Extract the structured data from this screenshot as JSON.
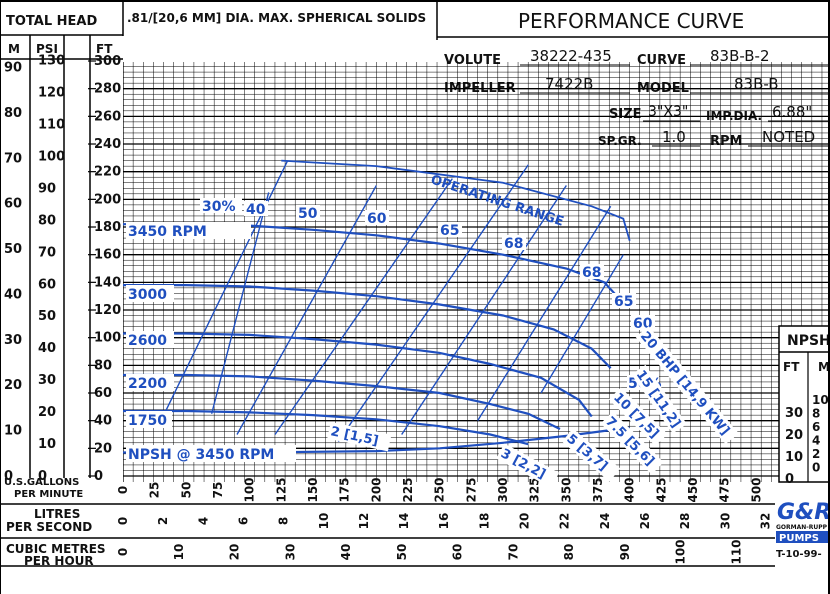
{
  "header": {
    "total_head_label": "TOTAL HEAD",
    "solids_note": ".81/[20,6 MM] DIA. MAX. SPHERICAL SOLIDS",
    "title": "PERFORMANCE CURVE",
    "volute_label": "VOLUTE",
    "volute_value": "38222-435",
    "curve_label": "CURVE",
    "curve_value": "83B-B-2",
    "impeller_label": "IMPELLER",
    "impeller_value": "7422B",
    "model_label": "MODEL",
    "model_value": "83B-B",
    "size_label": "SIZE",
    "size_value": "3\"X3\"",
    "impdia_label": "IMP.DIA.",
    "impdia_value": "6.88\"",
    "spgr_label": "SP.GR.",
    "spgr_value": "1.0",
    "rpm_label": "RPM",
    "rpm_value": "NOTED"
  },
  "left_axes": {
    "m_label": "M",
    "psi_label": "PSI",
    "ft_label": "FT",
    "m_ticks": [
      "90",
      "80",
      "70",
      "60",
      "50",
      "40",
      "30",
      "20",
      "10",
      "0"
    ],
    "psi_ticks": [
      "130",
      "120",
      "110",
      "100",
      "90",
      "80",
      "70",
      "60",
      "50",
      "40",
      "30",
      "20",
      "10",
      "0"
    ],
    "ft_ticks": [
      "300",
      "280",
      "260",
      "240",
      "220",
      "200",
      "180",
      "160",
      "140",
      "120",
      "100",
      "80",
      "60",
      "40",
      "20",
      "0"
    ]
  },
  "bottom_axes": {
    "gpm_label_1": "U.S.GALLONS",
    "gpm_label_2": "PER MINUTE",
    "gpm_ticks": [
      "0",
      "25",
      "50",
      "75",
      "100",
      "125",
      "150",
      "175",
      "200",
      "225",
      "250",
      "275",
      "300",
      "325",
      "350",
      "375",
      "400",
      "425",
      "450",
      "475",
      "500"
    ],
    "lps_label_1": "LITRES",
    "lps_label_2": "PER SECOND",
    "lps_ticks": [
      "0",
      "2",
      "4",
      "6",
      "8",
      "10",
      "12",
      "14",
      "16",
      "18",
      "20",
      "22",
      "24",
      "26",
      "28",
      "30",
      "32"
    ],
    "m3h_label_1": "CUBIC METRES",
    "m3h_label_2": "PER HOUR",
    "m3h_ticks": [
      "0",
      "10",
      "20",
      "30",
      "40",
      "50",
      "60",
      "70",
      "80",
      "90",
      "100",
      "110"
    ]
  },
  "npsh_panel": {
    "title": "NPSH",
    "ft_label": "FT",
    "m_label": "M",
    "ft_ticks": [
      "30",
      "20",
      "10",
      "0"
    ],
    "m_ticks": [
      "10",
      "8",
      "6",
      "4",
      "2",
      "0"
    ]
  },
  "logo": {
    "mark": "G&R",
    "line1": "GORMAN-RUPP",
    "line2": "PUMPS"
  },
  "doc_id": "T-10-99-",
  "chart_data": {
    "type": "line",
    "title": "PERFORMANCE CURVE",
    "xlabel": "U.S.GALLONS PER MINUTE",
    "ylabel": "TOTAL HEAD FT",
    "xlim": [
      0,
      500
    ],
    "ylim": [
      0,
      300
    ],
    "grid": true,
    "series": [
      {
        "name": "3450 RPM",
        "points": [
          [
            0,
            182
          ],
          [
            50,
            182
          ],
          [
            100,
            181
          ],
          [
            150,
            178
          ],
          [
            200,
            174
          ],
          [
            250,
            168
          ],
          [
            300,
            160
          ],
          [
            350,
            150
          ],
          [
            380,
            140
          ],
          [
            395,
            125
          ]
        ]
      },
      {
        "name": "3000",
        "points": [
          [
            0,
            138
          ],
          [
            50,
            138
          ],
          [
            100,
            137
          ],
          [
            150,
            134
          ],
          [
            200,
            130
          ],
          [
            250,
            124
          ],
          [
            300,
            116
          ],
          [
            340,
            106
          ],
          [
            370,
            92
          ],
          [
            385,
            78
          ]
        ]
      },
      {
        "name": "2600",
        "points": [
          [
            0,
            103
          ],
          [
            50,
            103
          ],
          [
            100,
            102
          ],
          [
            150,
            99
          ],
          [
            200,
            95
          ],
          [
            250,
            89
          ],
          [
            290,
            81
          ],
          [
            330,
            71
          ],
          [
            360,
            55
          ],
          [
            370,
            43
          ]
        ]
      },
      {
        "name": "2200",
        "points": [
          [
            0,
            73
          ],
          [
            50,
            73
          ],
          [
            100,
            72
          ],
          [
            150,
            69
          ],
          [
            200,
            65
          ],
          [
            250,
            60
          ],
          [
            290,
            52
          ],
          [
            320,
            45
          ],
          [
            345,
            34
          ]
        ]
      },
      {
        "name": "1750",
        "points": [
          [
            0,
            47
          ],
          [
            50,
            47
          ],
          [
            100,
            46
          ],
          [
            150,
            44
          ],
          [
            200,
            41
          ],
          [
            250,
            36
          ],
          [
            290,
            30
          ],
          [
            320,
            23
          ]
        ]
      },
      {
        "name": "NPSH @ 3450 RPM",
        "points": [
          [
            0,
            17
          ],
          [
            100,
            17
          ],
          [
            200,
            18
          ],
          [
            250,
            20
          ],
          [
            300,
            24
          ],
          [
            350,
            29
          ],
          [
            400,
            35
          ]
        ]
      },
      {
        "name": "OPERATING RANGE",
        "points": [
          [
            125,
            228
          ],
          [
            200,
            224
          ],
          [
            300,
            212
          ],
          [
            370,
            195
          ],
          [
            395,
            186
          ],
          [
            400,
            170
          ]
        ]
      }
    ],
    "efficiency_labels": [
      "30%",
      "40",
      "50",
      "60",
      "65",
      "68",
      "68",
      "65",
      "60",
      "50%"
    ],
    "power_labels": [
      "2 [1,5]",
      "3 [2,2]",
      "5 [3,7]",
      "7.5 [5,6]",
      "10 [7,5]",
      "15 [11,2]",
      "20 BHP [14,9 KW]"
    ]
  }
}
